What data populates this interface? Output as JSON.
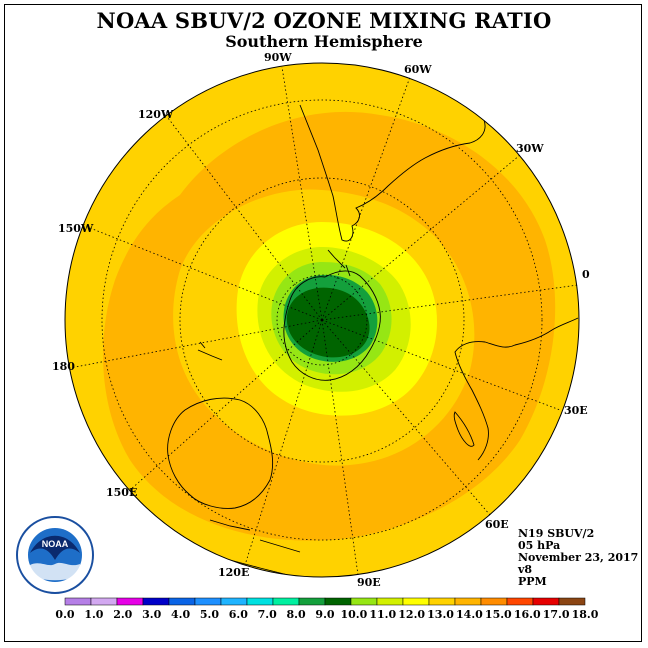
{
  "title": "NOAA SBUV/2 OZONE MIXING RATIO",
  "subtitle": "Southern Hemisphere",
  "longitude_labels": {
    "lon_90w": "90W",
    "lon_60w": "60W",
    "lon_30w": "30W",
    "lon_0": "0",
    "lon_30e": "30E",
    "lon_60e": "60E",
    "lon_90e": "90E",
    "lon_120e": "120E",
    "lon_150e": "150E",
    "lon_180": "180",
    "lon_150w": "150W",
    "lon_120w": "120W"
  },
  "info": {
    "instrument": "N19 SBUV/2",
    "pressure": "05 hPa",
    "date": "November 23, 2017",
    "version": "v8",
    "units": "PPM"
  },
  "logo": {
    "text": "NOAA"
  },
  "colorbar": {
    "colors": [
      "#b57fe6",
      "#d2a8f0",
      "#e600e6",
      "#0000c8",
      "#0a64e6",
      "#1e90ff",
      "#1fb4ff",
      "#00e1e1",
      "#00f0a0",
      "#14a03c",
      "#006400",
      "#96e614",
      "#d2f000",
      "#ffff00",
      "#ffd200",
      "#ffb400",
      "#ff8c00",
      "#ff4600",
      "#e60000",
      "#8b4513"
    ],
    "ticks": [
      "0.0",
      "1.0",
      "2.0",
      "3.0",
      "4.0",
      "5.0",
      "6.0",
      "7.0",
      "8.0",
      "9.0",
      "10.0",
      "11.0",
      "12.0",
      "13.0",
      "14.0",
      "15.0",
      "16.0",
      "17.0",
      "18.0"
    ]
  },
  "map_colors": {
    "c13_14": "#ffd200",
    "c14_15": "#ffb400",
    "c12_13": "#ffff00",
    "c11_12": "#d2f000",
    "c10_11": "#96e614",
    "c9_10": "#14a03c",
    "c8_9": "#006400"
  }
}
